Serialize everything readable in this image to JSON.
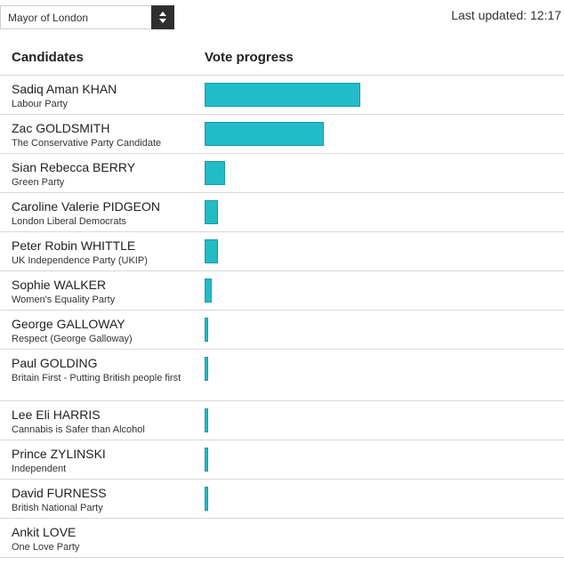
{
  "election_select": {
    "value": "Mayor of London"
  },
  "last_updated": "Last updated: 12:17",
  "table": {
    "col_candidates": "Candidates",
    "col_progress": "Vote progress",
    "rows": [
      {
        "name": "Sadiq Aman KHAN",
        "party": "Labour Party",
        "progress": 0.34
      },
      {
        "name": "Zac GOLDSMITH",
        "party": "The Conservative Party Candidate",
        "progress": 0.26
      },
      {
        "name": "Sian Rebecca BERRY",
        "party": "Green Party",
        "progress": 0.045
      },
      {
        "name": "Caroline Valerie PIDGEON",
        "party": "London Liberal Democrats",
        "progress": 0.03
      },
      {
        "name": "Peter Robin WHITTLE",
        "party": "UK Independence Party (UKIP)",
        "progress": 0.03
      },
      {
        "name": "Sophie WALKER",
        "party": "Women's Equality Party",
        "progress": 0.015
      },
      {
        "name": "George GALLOWAY",
        "party": "Respect (George Galloway)",
        "progress": 0.008
      },
      {
        "name": "Paul GOLDING",
        "party": "Britain First - Putting British people first",
        "progress": 0.008
      },
      {
        "name": "Lee Eli HARRIS",
        "party": "Cannabis is Safer than Alcohol",
        "progress": 0.008
      },
      {
        "name": "Prince ZYLINSKI",
        "party": "Independent",
        "progress": 0.008
      },
      {
        "name": "David FURNESS",
        "party": "British National Party",
        "progress": 0.008
      },
      {
        "name": "Ankit LOVE",
        "party": "One Love Party",
        "progress": 0
      }
    ]
  },
  "colors": {
    "bar": "#22bcc8",
    "bar_border": "#1a9aa5",
    "select_arrow_bg": "#2f2f2f"
  }
}
